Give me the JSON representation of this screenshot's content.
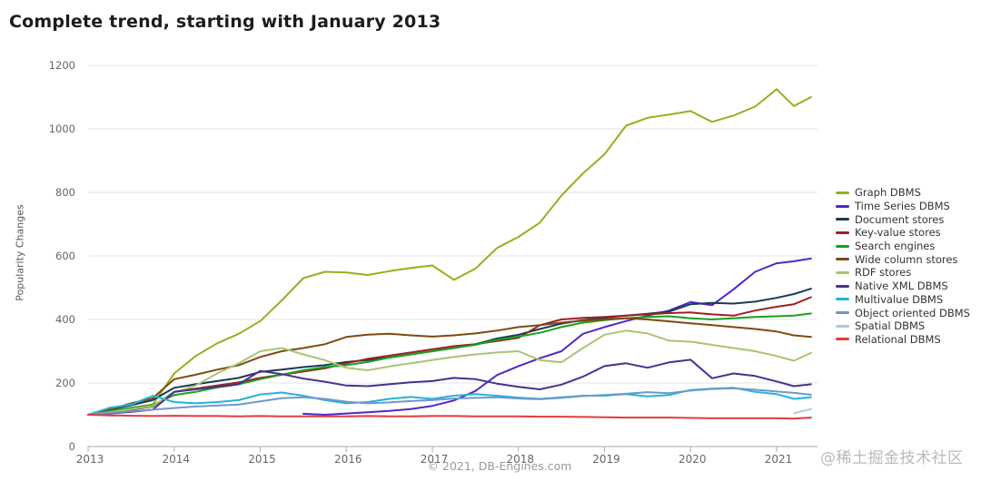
{
  "title": "Complete trend, starting with January 2013",
  "footer": "© 2021, DB-Engines.com",
  "watermark": "@稀土掘金技术社区",
  "chart_data": {
    "type": "line",
    "title": "Complete trend, starting with January 2013",
    "xlabel": "",
    "ylabel": "Popularity Changes",
    "ylim": [
      0,
      1200
    ],
    "xlim": [
      2013,
      2021.5
    ],
    "grid": "horizontal",
    "legend_position": "right",
    "yticks": [
      0,
      200,
      400,
      600,
      800,
      1000,
      1200
    ],
    "xticks": [
      2013,
      2014,
      2015,
      2016,
      2017,
      2018,
      2019,
      2020,
      2021
    ],
    "x": [
      2013.0,
      2013.25,
      2013.5,
      2013.75,
      2014.0,
      2014.25,
      2014.5,
      2014.75,
      2015.0,
      2015.25,
      2015.5,
      2015.75,
      2016.0,
      2016.25,
      2016.5,
      2016.75,
      2017.0,
      2017.25,
      2017.5,
      2017.75,
      2018.0,
      2018.25,
      2018.5,
      2018.75,
      2019.0,
      2019.25,
      2019.5,
      2019.75,
      2020.0,
      2020.25,
      2020.5,
      2020.75,
      2021.0,
      2021.2,
      2021.4
    ],
    "series": [
      {
        "name": "Graph DBMS",
        "color": "#92b221",
        "values": [
          100,
          112,
          122,
          132,
          230,
          285,
          325,
          355,
          395,
          460,
          530,
          550,
          548,
          540,
          552,
          562,
          570,
          525,
          560,
          625,
          660,
          705,
          790,
          860,
          920,
          1010,
          1035,
          1045,
          1056,
          1022,
          1042,
          1070,
          1125,
          1072,
          1100
        ]
      },
      {
        "name": "Time Series DBMS",
        "color": "#5228c6",
        "values": [
          null,
          null,
          null,
          null,
          null,
          null,
          null,
          null,
          null,
          null,
          103,
          100,
          104,
          108,
          112,
          118,
          128,
          145,
          175,
          225,
          253,
          278,
          300,
          355,
          376,
          395,
          412,
          428,
          455,
          445,
          495,
          550,
          577,
          583,
          592
        ]
      },
      {
        "name": "Document stores",
        "color": "#1b3a54",
        "values": [
          100,
          116,
          130,
          146,
          185,
          196,
          206,
          216,
          235,
          242,
          250,
          256,
          266,
          272,
          280,
          290,
          300,
          310,
          322,
          340,
          352,
          370,
          387,
          398,
          405,
          412,
          418,
          425,
          448,
          452,
          450,
          456,
          468,
          480,
          497
        ]
      },
      {
        "name": "Key-value stores",
        "color": "#9e2023",
        "values": [
          100,
          106,
          116,
          126,
          172,
          182,
          192,
          202,
          216,
          226,
          236,
          246,
          262,
          276,
          286,
          296,
          306,
          316,
          322,
          332,
          342,
          382,
          400,
          405,
          408,
          412,
          416,
          420,
          422,
          416,
          412,
          428,
          440,
          448,
          470
        ]
      },
      {
        "name": "Search engines",
        "color": "#16a31d",
        "values": [
          100,
          111,
          121,
          131,
          162,
          172,
          186,
          196,
          212,
          226,
          240,
          250,
          256,
          266,
          280,
          290,
          300,
          310,
          320,
          336,
          346,
          358,
          376,
          390,
          398,
          404,
          408,
          410,
          404,
          400,
          404,
          408,
          410,
          412,
          419
        ]
      },
      {
        "name": "Wide column stores",
        "color": "#7e4a10",
        "values": [
          100,
          117,
          136,
          152,
          212,
          226,
          242,
          256,
          282,
          300,
          310,
          322,
          345,
          352,
          355,
          350,
          346,
          350,
          356,
          365,
          376,
          382,
          390,
          396,
          400,
          404,
          400,
          394,
          388,
          382,
          376,
          370,
          362,
          350,
          345
        ]
      },
      {
        "name": "RDF stores",
        "color": "#a8c572",
        "values": [
          100,
          108,
          118,
          128,
          170,
          192,
          230,
          262,
          300,
          310,
          290,
          272,
          248,
          240,
          252,
          262,
          272,
          282,
          290,
          296,
          300,
          272,
          265,
          310,
          352,
          365,
          356,
          333,
          330,
          320,
          310,
          300,
          285,
          270,
          295
        ]
      },
      {
        "name": "Native XML DBMS",
        "color": "#46318d",
        "values": [
          100,
          104,
          109,
          116,
          172,
          180,
          188,
          196,
          238,
          228,
          214,
          204,
          192,
          190,
          196,
          202,
          206,
          216,
          212,
          198,
          188,
          180,
          195,
          220,
          253,
          262,
          248,
          265,
          273,
          215,
          230,
          222,
          205,
          190,
          196
        ]
      },
      {
        "name": "Multivalue DBMS",
        "color": "#27b2d8",
        "values": [
          100,
          122,
          132,
          160,
          140,
          136,
          140,
          146,
          164,
          170,
          160,
          146,
          136,
          140,
          150,
          156,
          150,
          160,
          165,
          160,
          154,
          150,
          155,
          160,
          160,
          165,
          158,
          162,
          178,
          182,
          185,
          172,
          165,
          150,
          155
        ]
      },
      {
        "name": "Object oriented DBMS",
        "color": "#6d99cb",
        "values": [
          100,
          106,
          111,
          116,
          121,
          126,
          129,
          132,
          142,
          152,
          155,
          150,
          141,
          136,
          139,
          143,
          146,
          151,
          153,
          155,
          151,
          149,
          153,
          159,
          162,
          166,
          171,
          168,
          176,
          181,
          183,
          179,
          173,
          169,
          163
        ]
      },
      {
        "name": "Spatial DBMS",
        "color": "#a6cce9",
        "values": [
          null,
          null,
          null,
          null,
          null,
          null,
          null,
          null,
          null,
          null,
          null,
          null,
          null,
          null,
          null,
          null,
          null,
          null,
          null,
          null,
          null,
          null,
          null,
          null,
          null,
          null,
          null,
          null,
          null,
          null,
          null,
          null,
          null,
          105,
          118
        ]
      },
      {
        "name": "Relational DBMS",
        "color": "#e23b3e",
        "values": [
          100,
          98,
          97,
          96,
          97,
          96,
          96,
          95,
          96,
          95,
          95,
          95,
          95,
          96,
          95,
          95,
          96,
          96,
          95,
          95,
          95,
          94,
          94,
          93,
          92,
          91,
          91,
          91,
          90,
          89,
          89,
          89,
          89,
          88,
          91
        ]
      }
    ]
  },
  "axis": {
    "grid_color": "#e4e4e4",
    "axis_color": "#aaaaaa",
    "tick_label_color": "#666666"
  }
}
